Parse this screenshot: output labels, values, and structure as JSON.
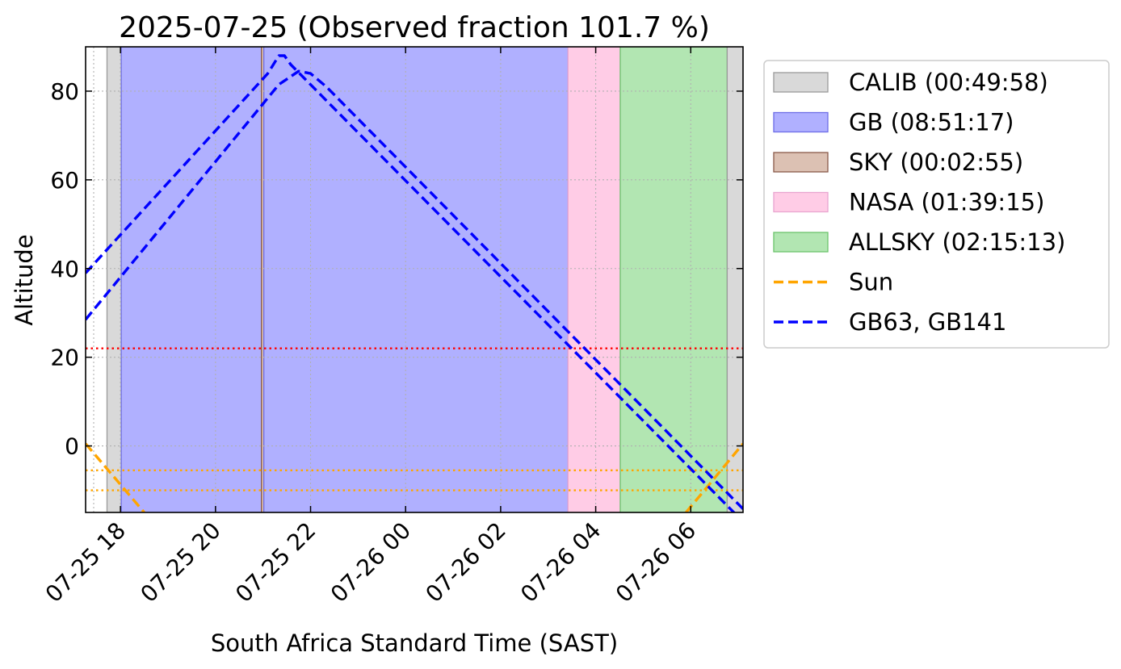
{
  "chart_data": {
    "type": "line",
    "title": "2025-07-25 (Observed fraction 101.7 %)",
    "xlabel": "South Africa Standard Time (SAST)",
    "ylabel": "Altitude",
    "xlim": [
      "2025-07-25 17:16",
      "2025-07-26 07:06"
    ],
    "ylim": [
      -15,
      90
    ],
    "grid": true,
    "grid_style": "dotted",
    "x_ticks": [
      "07-25 18",
      "07-25 20",
      "07-25 22",
      "07-26 00",
      "07-26 02",
      "07-26 04",
      "07-26 06"
    ],
    "x_tick_times": [
      "2025-07-25 18:00",
      "2025-07-25 20:00",
      "2025-07-25 22:00",
      "2025-07-26 00:00",
      "2025-07-26 02:00",
      "2025-07-26 04:00",
      "2025-07-26 06:00"
    ],
    "y_ticks": [
      0,
      20,
      40,
      60,
      80
    ],
    "legend_position": "outside-right",
    "spans": [
      {
        "name": "CALIB (00:49:58)",
        "start": "2025-07-25 17:43",
        "end": "2025-07-25 18:01",
        "color": "#d9d9d9",
        "edge": "#9a9a9a",
        "in_legend": true
      },
      {
        "name": "GB (08:51:17)",
        "start": "2025-07-25 18:01",
        "end": "2025-07-25 20:58",
        "color": "#b0b0ff",
        "edge": "#6d6de6",
        "in_legend": true
      },
      {
        "name": "SKY (00:02:55)",
        "start": "2025-07-25 20:58",
        "end": "2025-07-25 21:01",
        "color": "#dcc1b3",
        "edge": "#8a5a4a",
        "in_legend": true
      },
      {
        "name": "GB",
        "start": "2025-07-25 21:01",
        "end": "2025-07-26 03:25",
        "color": "#b0b0ff",
        "edge": "#6d6de6",
        "in_legend": false
      },
      {
        "name": "NASA (01:39:15)",
        "start": "2025-07-26 03:25",
        "end": "2025-07-26 04:31",
        "color": "#ffcce6",
        "edge": "#e8a5d0",
        "in_legend": true
      },
      {
        "name": "ALLSKY (02:15:13)",
        "start": "2025-07-26 04:31",
        "end": "2025-07-26 06:46",
        "color": "#b2e6b2",
        "edge": "#6cc46c",
        "in_legend": true
      },
      {
        "name": "CALIB",
        "start": "2025-07-26 06:46",
        "end": "2025-07-26 07:18",
        "color": "#d9d9d9",
        "edge": "#9a9a9a",
        "in_legend": false
      }
    ],
    "series": [
      {
        "name": "Sun",
        "style": "dashed",
        "color": "#ffa500",
        "in_legend": true,
        "segments": [
          [
            [
              "2025-07-25 17:16",
              0.5
            ],
            [
              "2025-07-25 18:30",
              -15
            ]
          ],
          [
            [
              "2025-07-26 05:54",
              -15
            ],
            [
              "2025-07-26 07:06",
              0.5
            ]
          ]
        ]
      },
      {
        "name": "GB63, GB141",
        "style": "dashed",
        "color": "#0000ff",
        "in_legend": true,
        "segments": [
          [
            [
              "2025-07-25 17:16",
              39
            ],
            [
              "2025-07-25 21:06",
              84
            ],
            [
              "2025-07-25 21:20",
              88
            ],
            [
              "2025-07-25 21:27",
              88
            ],
            [
              "2025-07-25 21:35",
              86
            ],
            [
              "2025-07-26 07:00",
              -16
            ]
          ],
          [
            [
              "2025-07-25 17:16",
              28.5
            ],
            [
              "2025-07-25 21:20",
              81.5
            ],
            [
              "2025-07-25 21:45",
              84.5
            ],
            [
              "2025-07-25 22:00",
              84
            ],
            [
              "2025-07-25 22:20",
              81
            ],
            [
              "2025-07-26 07:16",
              -16
            ]
          ]
        ]
      }
    ],
    "hlines": [
      {
        "y": 22,
        "color": "#ff0000",
        "style": "dotted"
      },
      {
        "y": -5.5,
        "color": "#ffa500",
        "style": "dotted"
      },
      {
        "y": -10,
        "color": "#ffa500",
        "style": "dotted"
      }
    ]
  }
}
